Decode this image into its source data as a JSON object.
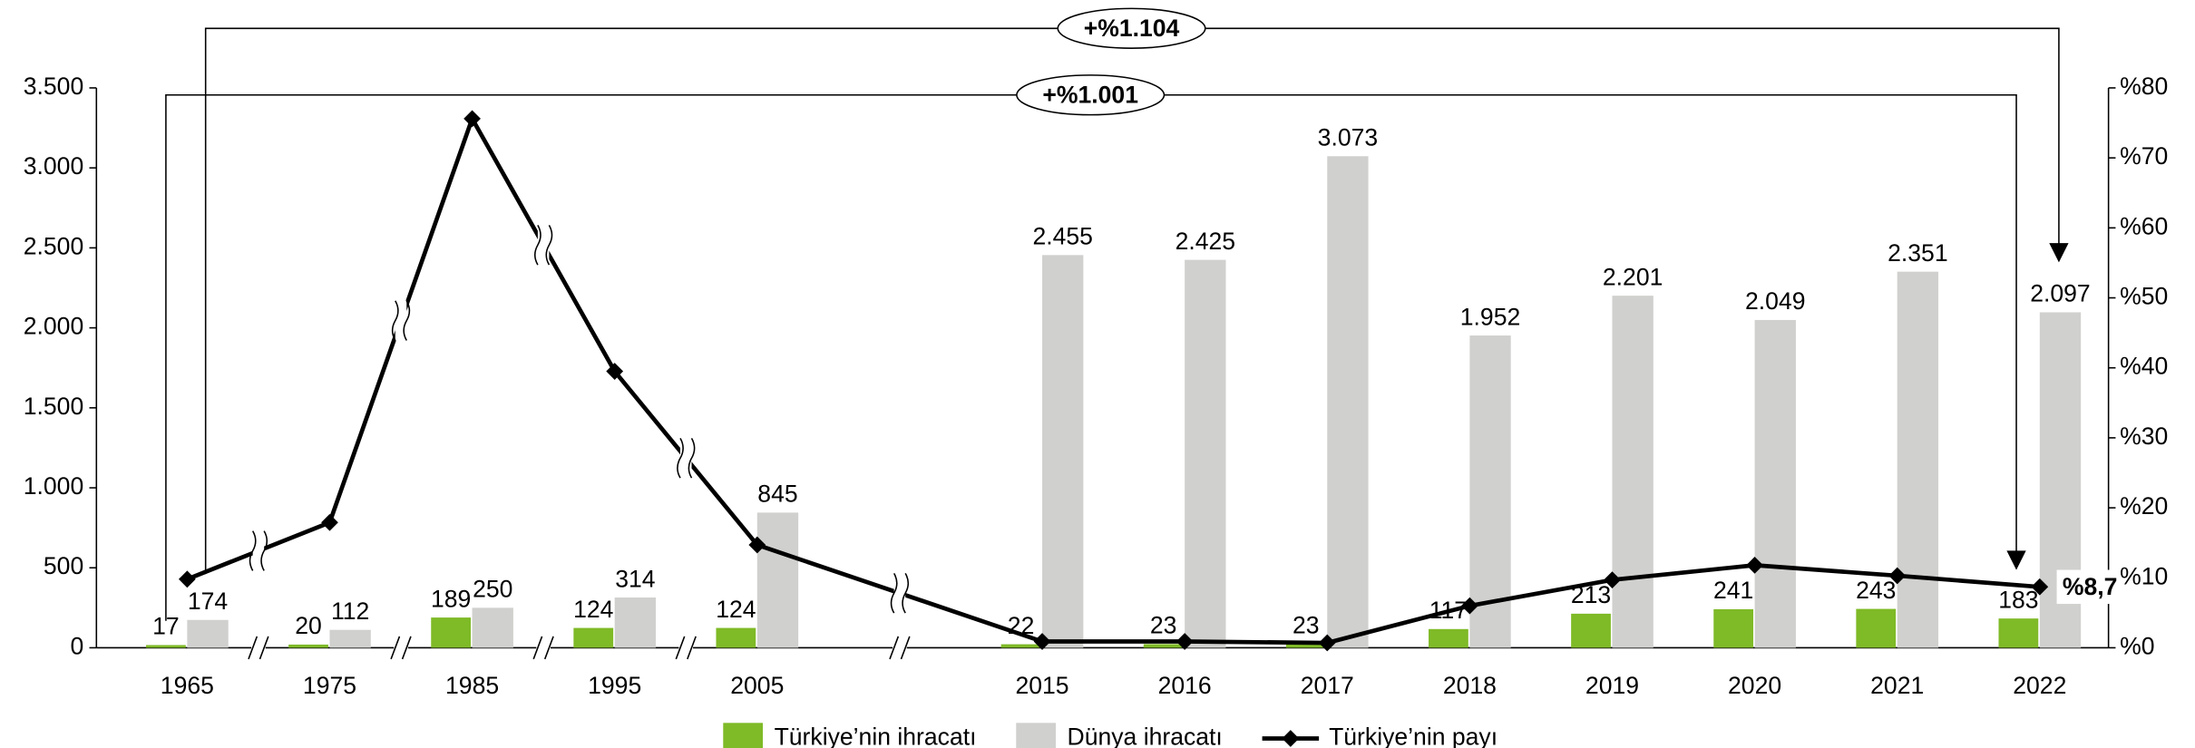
{
  "chart_data": {
    "type": "bar",
    "categories": [
      "1965",
      "1975",
      "1985",
      "1995",
      "2005",
      "2015",
      "2016",
      "2017",
      "2018",
      "2019",
      "2020",
      "2021",
      "2022"
    ],
    "series": [
      {
        "name": "Türkiye’nin ihracatı",
        "type": "bar",
        "color": "#7fba27",
        "values": [
          17,
          20,
          189,
          124,
          124,
          22,
          23,
          23,
          117,
          213,
          241,
          243,
          183
        ]
      },
      {
        "name": "Dünya ihracatı",
        "type": "bar",
        "color": "#d0d0ce",
        "values": [
          174,
          112,
          250,
          314,
          845,
          2455,
          2425,
          3073,
          1952,
          2201,
          2049,
          2351,
          2097
        ],
        "value_labels": [
          "174",
          "112",
          "250",
          "314",
          "845",
          "2.455",
          "2.425",
          "3.073",
          "1.952",
          "2.201",
          "2.049",
          "2.351",
          "2.097"
        ]
      },
      {
        "name": "Türkiye’nin payı",
        "type": "line",
        "axis": "y2",
        "color": "#000000",
        "values": [
          9.8,
          17.9,
          75.6,
          39.5,
          14.7,
          0.9,
          0.9,
          0.7,
          6.0,
          9.7,
          11.8,
          10.3,
          8.7
        ],
        "value_labels": [
          null,
          null,
          null,
          null,
          null,
          null,
          null,
          null,
          null,
          null,
          null,
          null,
          "%8,7"
        ]
      }
    ],
    "ylim": [
      0,
      3500
    ],
    "yticks": [
      0,
      500,
      {
        "value": 1000,
        "label": "1.000"
      },
      {
        "value": 1500,
        "label": "1.500"
      },
      {
        "value": 2000,
        "label": "2.000"
      },
      {
        "value": 2500,
        "label": "2.500"
      },
      {
        "value": 3000,
        "label": "3.000"
      },
      {
        "value": 3500,
        "label": "3.500"
      }
    ],
    "y2lim": [
      0,
      80
    ],
    "y2ticks": [
      {
        "value": 0,
        "label": "%0"
      },
      {
        "value": 10,
        "label": "%10"
      },
      {
        "value": 20,
        "label": "%20"
      },
      {
        "value": 30,
        "label": "%30"
      },
      {
        "value": 40,
        "label": "%40"
      },
      {
        "value": 50,
        "label": "%50"
      },
      {
        "value": 60,
        "label": "%60"
      },
      {
        "value": 70,
        "label": "%70"
      },
      {
        "value": 80,
        "label": "%80"
      }
    ],
    "annotations": [
      "+%1.104",
      "+%1.001"
    ],
    "legend": "bottom"
  }
}
